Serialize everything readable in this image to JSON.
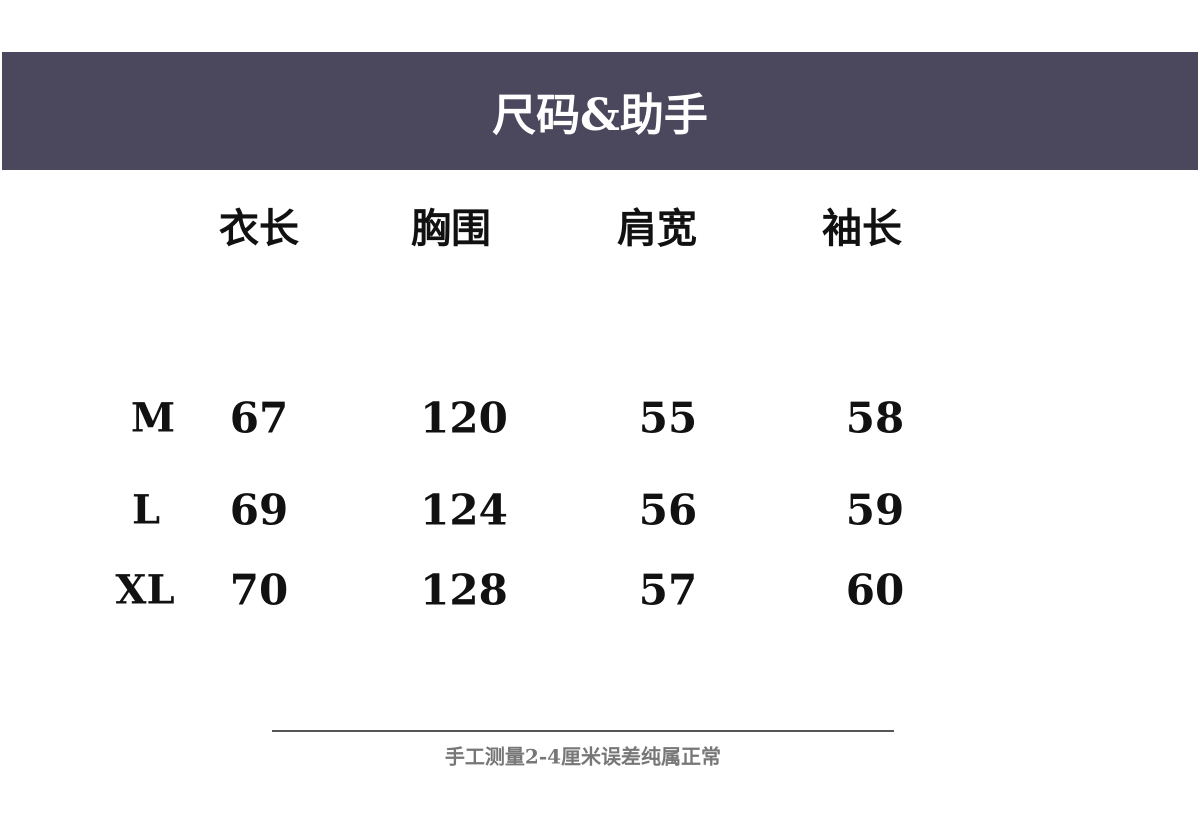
{
  "title": "尺码&助手",
  "columns": [
    "衣长",
    "胸围",
    "肩宽",
    "袖长"
  ],
  "rows": [
    {
      "size": "M",
      "values": [
        "67",
        "120",
        "55",
        "58"
      ]
    },
    {
      "size": "L",
      "values": [
        "69",
        "124",
        "56",
        "59"
      ]
    },
    {
      "size": "XL",
      "values": [
        "70",
        "128",
        "57",
        "60"
      ]
    }
  ],
  "note": "手工测量2-4厘米误差纯属正常",
  "colors": {
    "banner": "#4b485d",
    "text": "#111111",
    "note": "#777777"
  }
}
